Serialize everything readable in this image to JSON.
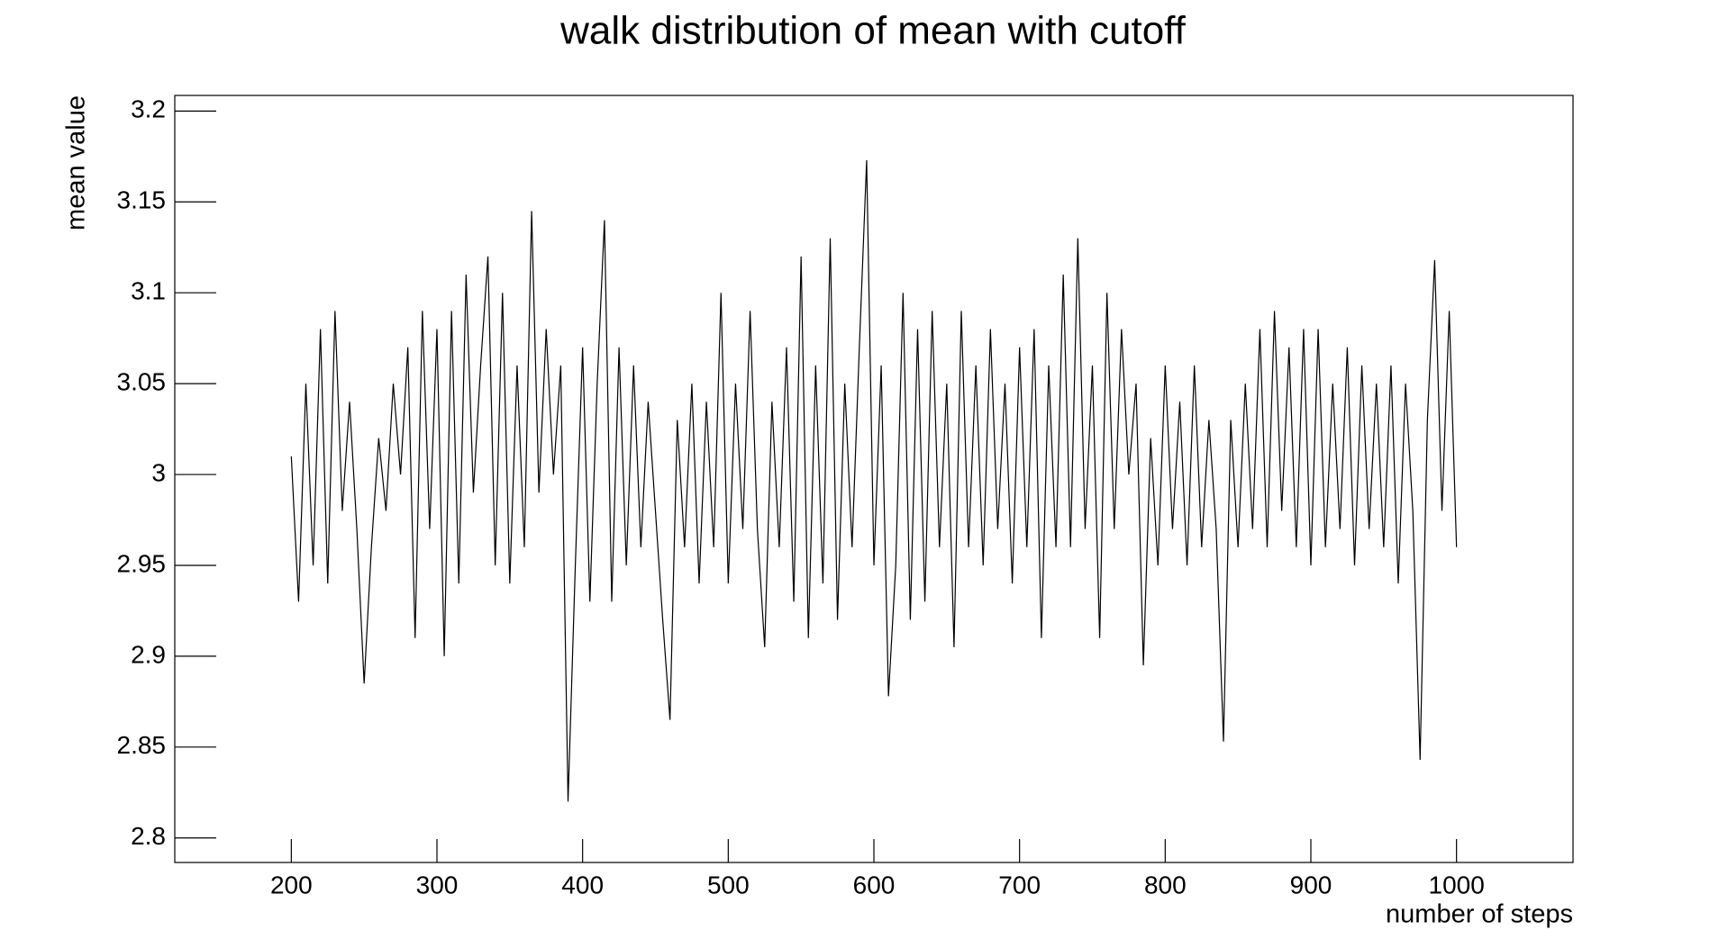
{
  "chart_data": {
    "type": "line",
    "title": "walk distribution of mean with cutoff",
    "x_label": "number of steps",
    "y_label": "mean value",
    "color": "#000000",
    "xlim": [
      120,
      1080
    ],
    "ylim": [
      2.7865,
      3.2086
    ],
    "xticks": [
      200,
      300,
      400,
      500,
      600,
      700,
      800,
      900,
      1000
    ],
    "yticks": [
      2.8,
      2.85,
      2.9,
      2.95,
      3,
      3.05,
      3.1,
      3.15,
      3.2
    ],
    "x": [
      200,
      205,
      210,
      215,
      220,
      225,
      230,
      235,
      240,
      245,
      250,
      255,
      260,
      265,
      270,
      275,
      280,
      285,
      290,
      295,
      300,
      305,
      310,
      315,
      320,
      325,
      330,
      335,
      340,
      345,
      350,
      355,
      360,
      365,
      370,
      375,
      380,
      385,
      390,
      395,
      400,
      405,
      410,
      415,
      420,
      425,
      430,
      435,
      440,
      445,
      450,
      455,
      460,
      465,
      470,
      475,
      480,
      485,
      490,
      495,
      500,
      505,
      510,
      515,
      520,
      525,
      530,
      535,
      540,
      545,
      550,
      555,
      560,
      565,
      570,
      575,
      580,
      585,
      590,
      595,
      600,
      605,
      610,
      615,
      620,
      625,
      630,
      635,
      640,
      645,
      650,
      655,
      660,
      665,
      670,
      675,
      680,
      685,
      690,
      695,
      700,
      705,
      710,
      715,
      720,
      725,
      730,
      735,
      740,
      745,
      750,
      755,
      760,
      765,
      770,
      775,
      780,
      785,
      790,
      795,
      800,
      805,
      810,
      815,
      820,
      825,
      830,
      835,
      840,
      845,
      850,
      855,
      860,
      865,
      870,
      875,
      880,
      885,
      890,
      895,
      900,
      905,
      910,
      915,
      920,
      925,
      930,
      935,
      940,
      945,
      950,
      955,
      960,
      965,
      970,
      975,
      980,
      985,
      990,
      995,
      1000
    ],
    "values": [
      3.01,
      2.93,
      3.05,
      2.95,
      3.08,
      2.94,
      3.09,
      2.98,
      3.04,
      2.97,
      2.885,
      2.96,
      3.02,
      2.98,
      3.05,
      3.0,
      3.07,
      2.91,
      3.09,
      2.97,
      3.08,
      2.9,
      3.09,
      2.94,
      3.11,
      2.99,
      3.06,
      3.12,
      2.95,
      3.1,
      2.94,
      3.06,
      2.96,
      3.145,
      2.99,
      3.08,
      3.0,
      3.06,
      2.82,
      2.95,
      3.07,
      2.93,
      3.05,
      3.14,
      2.93,
      3.07,
      2.95,
      3.06,
      2.96,
      3.04,
      2.98,
      2.92,
      2.865,
      3.03,
      2.96,
      3.05,
      2.94,
      3.04,
      2.96,
      3.1,
      2.94,
      3.05,
      2.97,
      3.09,
      2.97,
      2.905,
      3.04,
      2.96,
      3.07,
      2.93,
      3.12,
      2.91,
      3.06,
      2.94,
      3.13,
      2.92,
      3.05,
      2.96,
      3.07,
      3.173,
      2.95,
      3.06,
      2.878,
      2.95,
      3.1,
      2.92,
      3.08,
      2.93,
      3.09,
      2.96,
      3.05,
      2.905,
      3.09,
      2.96,
      3.06,
      2.95,
      3.08,
      2.97,
      3.05,
      2.94,
      3.07,
      2.96,
      3.08,
      2.91,
      3.06,
      2.96,
      3.11,
      2.96,
      3.13,
      2.97,
      3.06,
      2.91,
      3.1,
      2.97,
      3.08,
      3.0,
      3.05,
      2.895,
      3.02,
      2.95,
      3.06,
      2.97,
      3.04,
      2.95,
      3.06,
      2.96,
      3.03,
      2.97,
      2.853,
      3.03,
      2.96,
      3.05,
      2.97,
      3.08,
      2.96,
      3.09,
      2.98,
      3.07,
      2.96,
      3.08,
      2.95,
      3.08,
      2.96,
      3.05,
      2.97,
      3.07,
      2.95,
      3.06,
      2.97,
      3.05,
      2.96,
      3.06,
      2.94,
      3.05,
      2.98,
      2.843,
      3.03,
      3.118,
      2.98,
      3.09,
      2.96
    ]
  }
}
